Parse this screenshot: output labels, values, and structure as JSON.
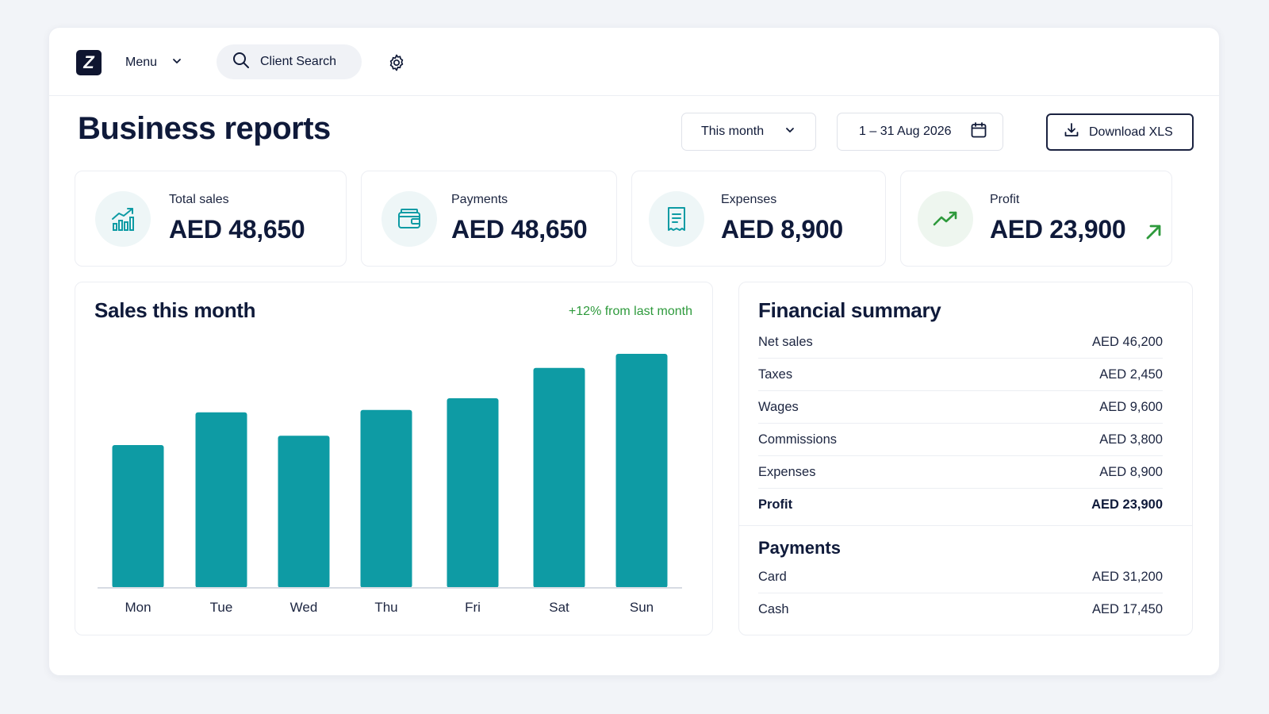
{
  "topbar": {
    "logo_letter": "Z",
    "menu_label": "Menu",
    "search_label": "Client Search"
  },
  "header": {
    "title": "Business reports",
    "period": "This month",
    "date_range": "1 – 31 Aug 2026",
    "download_label": "Download XLS"
  },
  "stats": [
    {
      "label": "Total sales",
      "value": "AED 48,650",
      "icon": "bar-chart-icon"
    },
    {
      "label": "Payments",
      "value": "AED 48,650",
      "icon": "wallet-icon"
    },
    {
      "label": "Expenses",
      "value": "AED 8,900",
      "icon": "receipt-icon"
    },
    {
      "label": "Profit",
      "value": "AED 23,900",
      "icon": "trend-up-icon"
    }
  ],
  "sales": {
    "title": "Sales this month",
    "change_note": "+12% from last month"
  },
  "chart_data": {
    "type": "bar",
    "categories": [
      "Mon",
      "Tue",
      "Wed",
      "Thu",
      "Fri",
      "Sat",
      "Sun"
    ],
    "values": [
      61,
      75,
      65,
      76,
      81,
      94,
      100
    ],
    "ylim": [
      0,
      100
    ],
    "title": "Sales this month",
    "xlabel": "",
    "ylabel": "",
    "grid": false,
    "color": "#0e9ba4"
  },
  "financial_summary": {
    "title": "Financial summary",
    "rows": [
      {
        "label": "Net sales",
        "value": "AED 46,200"
      },
      {
        "label": "Taxes",
        "value": "AED 2,450"
      },
      {
        "label": "Wages",
        "value": "AED 9,600"
      },
      {
        "label": "Commissions",
        "value": "AED 3,800"
      },
      {
        "label": "Expenses",
        "value": "AED 8,900"
      },
      {
        "label": "Profit",
        "value": "AED 23,900"
      }
    ],
    "payments_title": "Payments",
    "payments": [
      {
        "label": "Card",
        "value": "AED 31,200"
      },
      {
        "label": "Cash",
        "value": "AED 17,450"
      }
    ]
  },
  "colors": {
    "accent": "#0e9ba4",
    "positive": "#2e9a3c",
    "navy": "#0f1530"
  }
}
